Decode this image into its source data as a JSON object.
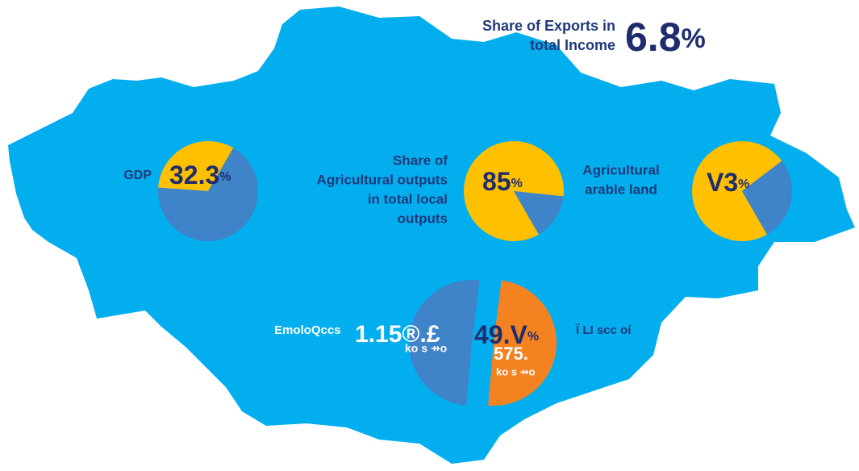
{
  "headline": {
    "title": [
      "Share of Exports in",
      "total  Income"
    ],
    "value": 6.8,
    "unit": "%"
  },
  "chart_data": [
    {
      "type": "pie",
      "title": [
        "GDP"
      ],
      "values": [
        32.3,
        67.7
      ],
      "colors": [
        "#ffc000",
        "#3f83c9"
      ],
      "value_labels": [
        "32.3",
        null
      ],
      "unit": "%"
    },
    {
      "type": "pie",
      "title": [
        "Share of",
        "Agricultural  outputs",
        "in total local",
        "outputs"
      ],
      "values": [
        85,
        15
      ],
      "colors": [
        "#ffc000",
        "#3f83c9"
      ],
      "value_labels": [
        "85",
        null
      ],
      "unit": "%"
    },
    {
      "type": "pie",
      "title": [
        "Agricultural",
        "arable land"
      ],
      "values": [
        73,
        27
      ],
      "colors": [
        "#ffc000",
        "#3f83c9"
      ],
      "value_labels": [
        "V3",
        null
      ],
      "unit": "%"
    },
    {
      "type": "pie",
      "categories": [
        "EmoloQccs",
        "Ï LI scc oí"
      ],
      "values": [
        50.6,
        49.4
      ],
      "colors": [
        "#3f83c9",
        "#f58220"
      ],
      "value_labels": [
        null,
        "49.V"
      ],
      "unit": "%",
      "annotations": [
        "1.15®.£",
        "ko s ⇸o",
        "575.",
        "ko s ⇸o"
      ]
    }
  ]
}
